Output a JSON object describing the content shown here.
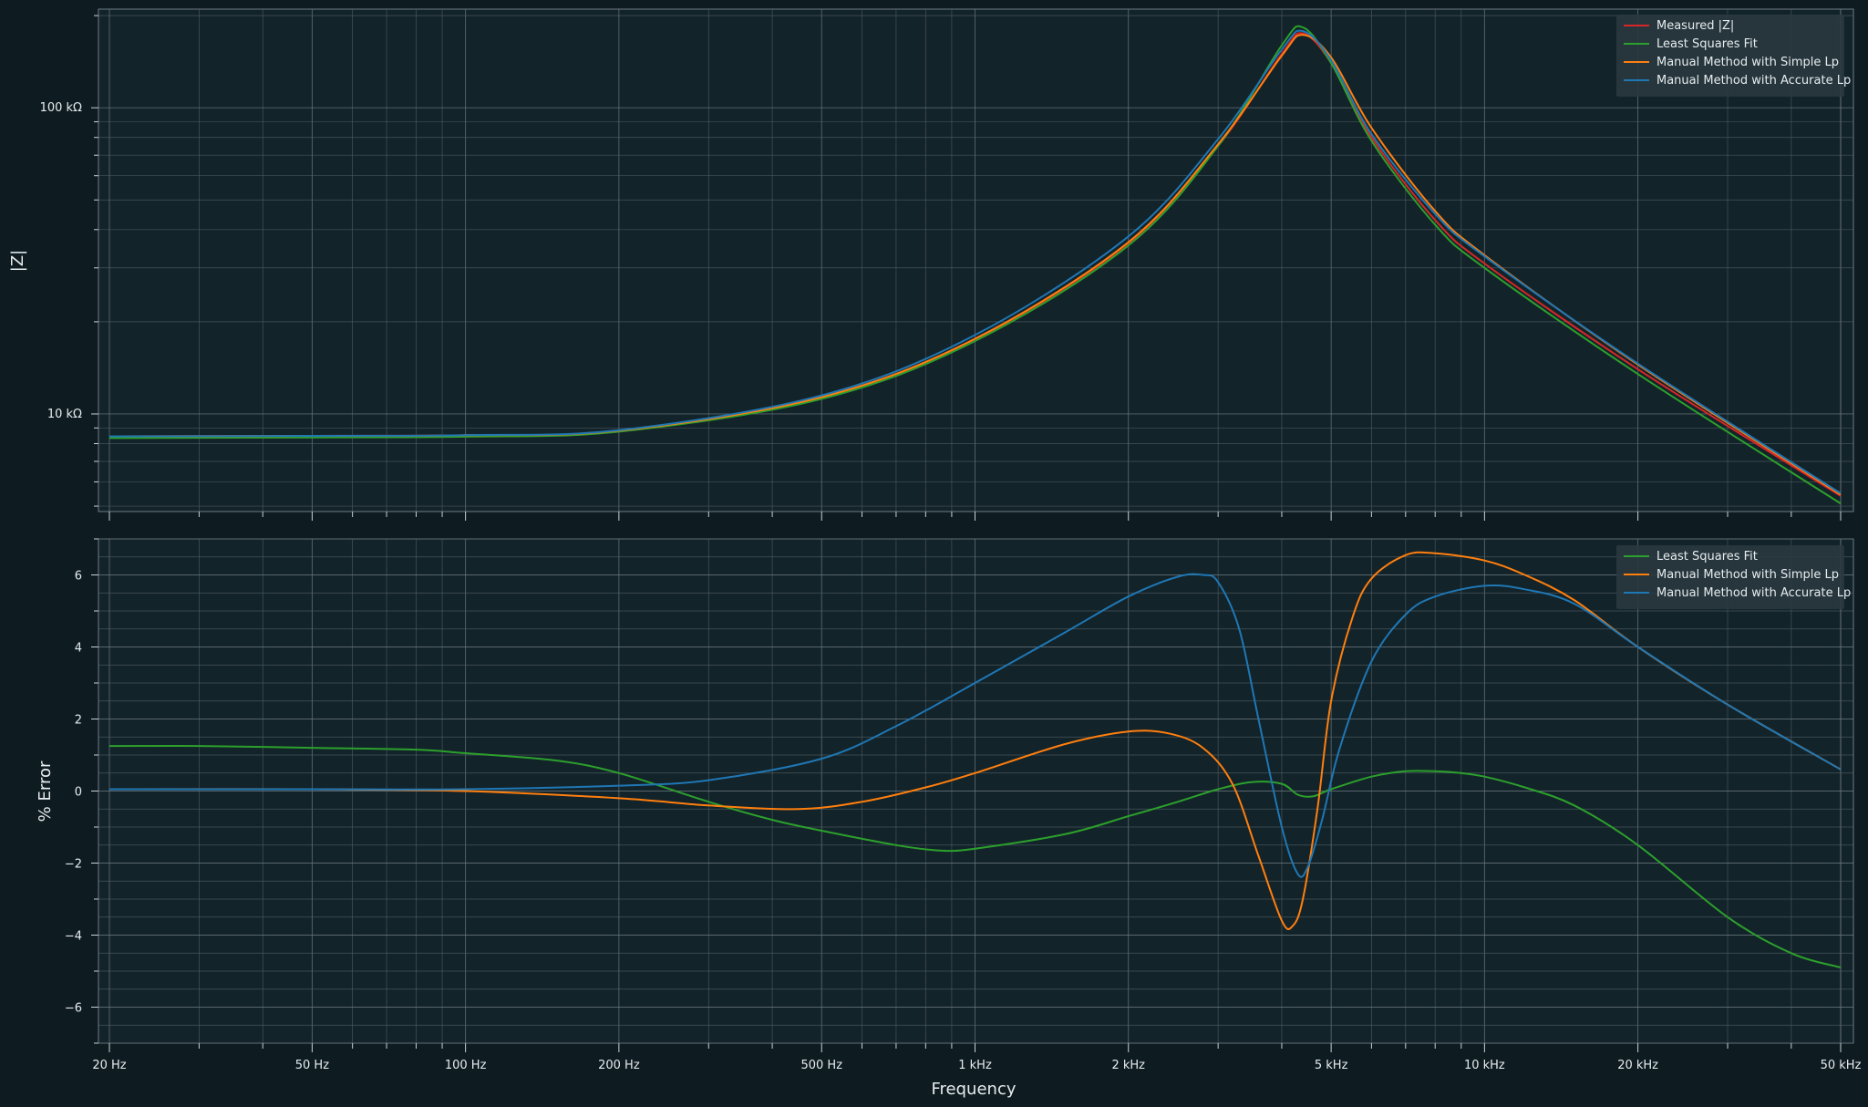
{
  "chart_data": [
    {
      "type": "line",
      "xlabel": "",
      "ylabel": "|Z|",
      "xscale": "log",
      "yscale": "log",
      "xlim": [
        20,
        50000
      ],
      "ylim": [
        4800,
        210000
      ],
      "grid": true,
      "legend_position": "top-right",
      "y_ticks": [
        {
          "value": 10000,
          "label": "10 kΩ"
        },
        {
          "value": 100000,
          "label": "100 kΩ"
        }
      ],
      "series": [
        {
          "name": "Measured |Z|",
          "color": "#d62728",
          "x": [
            20,
            50,
            100,
            200,
            500,
            1000,
            2000,
            3000,
            4000,
            4400,
            5000,
            6000,
            8000,
            10000,
            20000,
            50000
          ],
          "y": [
            8450,
            8480,
            8520,
            8800,
            11300,
            17500,
            36000,
            75000,
            150000,
            175000,
            140000,
            80000,
            43000,
            31000,
            14000,
            5400
          ]
        },
        {
          "name": "Least Squares Fit",
          "color": "#2ca02c",
          "x": [
            20,
            50,
            100,
            200,
            500,
            1000,
            2000,
            3000,
            4000,
            4400,
            5000,
            6000,
            8000,
            10000,
            20000,
            50000
          ],
          "y": [
            8340,
            8380,
            8430,
            8750,
            11200,
            17300,
            35500,
            75000,
            160000,
            183000,
            140000,
            78000,
            41500,
            30000,
            13500,
            5100
          ]
        },
        {
          "name": "Manual Method with Simple Lp",
          "color": "#ff7f0e",
          "x": [
            20,
            50,
            100,
            200,
            500,
            1000,
            2000,
            3000,
            4000,
            4400,
            5000,
            6000,
            8000,
            10000,
            20000,
            50000
          ],
          "y": [
            8450,
            8480,
            8520,
            8820,
            11350,
            17600,
            36400,
            76000,
            148000,
            173000,
            146000,
            86000,
            46000,
            33000,
            14500,
            5450
          ]
        },
        {
          "name": "Manual Method with Accurate Lp",
          "color": "#1f77b4",
          "x": [
            20,
            50,
            100,
            200,
            500,
            1000,
            2000,
            3000,
            4000,
            4400,
            5000,
            6000,
            8000,
            10000,
            20000,
            50000
          ],
          "y": [
            8450,
            8480,
            8530,
            8850,
            11500,
            18100,
            38000,
            79000,
            155000,
            178000,
            143000,
            82000,
            45000,
            32700,
            14600,
            5500
          ]
        }
      ]
    },
    {
      "type": "line",
      "xlabel": "Frequency",
      "ylabel": "% Error",
      "xscale": "log",
      "xlim": [
        20,
        50000
      ],
      "ylim": [
        -7,
        7
      ],
      "grid": true,
      "legend_position": "top-right",
      "x_ticks": [
        {
          "value": 20,
          "label": "20 Hz"
        },
        {
          "value": 50,
          "label": "50 Hz"
        },
        {
          "value": 100,
          "label": "100 Hz"
        },
        {
          "value": 200,
          "label": "200 Hz"
        },
        {
          "value": 500,
          "label": "500 Hz"
        },
        {
          "value": 1000,
          "label": "1 kHz"
        },
        {
          "value": 2000,
          "label": "2 kHz"
        },
        {
          "value": 5000,
          "label": "5 kHz"
        },
        {
          "value": 10000,
          "label": "10 kHz"
        },
        {
          "value": 20000,
          "label": "20 kHz"
        },
        {
          "value": 50000,
          "label": "50 kHz"
        }
      ],
      "y_ticks": [
        -6,
        -4,
        -2,
        0,
        2,
        4,
        6
      ],
      "series": [
        {
          "name": "Least Squares Fit",
          "color": "#2ca02c",
          "x": [
            20,
            30,
            50,
            80,
            100,
            150,
            200,
            300,
            400,
            500,
            700,
            850,
            1000,
            1500,
            2000,
            2500,
            3000,
            3500,
            4000,
            4300,
            4600,
            5000,
            6000,
            7000,
            8000,
            9000,
            10000,
            12000,
            15000,
            20000,
            30000,
            40000,
            50000
          ],
          "y": [
            1.25,
            1.25,
            1.2,
            1.15,
            1.05,
            0.85,
            0.5,
            -0.3,
            -0.8,
            -1.1,
            -1.5,
            -1.65,
            -1.6,
            -1.2,
            -0.7,
            -0.3,
            0.05,
            0.25,
            0.2,
            -0.1,
            -0.15,
            0.05,
            0.4,
            0.55,
            0.55,
            0.5,
            0.4,
            0.1,
            -0.4,
            -1.5,
            -3.5,
            -4.5,
            -4.9
          ]
        },
        {
          "name": "Manual Method with Simple Lp",
          "color": "#ff7f0e",
          "x": [
            20,
            50,
            100,
            200,
            300,
            450,
            600,
            800,
            1000,
            1500,
            2000,
            2400,
            2800,
            3200,
            3600,
            4000,
            4200,
            4400,
            4700,
            5000,
            5500,
            6000,
            7000,
            8000,
            10000,
            12000,
            15000,
            20000,
            30000,
            50000
          ],
          "y": [
            0.05,
            0.05,
            0.0,
            -0.2,
            -0.4,
            -0.5,
            -0.3,
            0.1,
            0.5,
            1.3,
            1.65,
            1.6,
            1.2,
            0.2,
            -1.8,
            -3.6,
            -3.75,
            -3.0,
            -0.5,
            2.5,
            4.8,
            5.9,
            6.55,
            6.6,
            6.4,
            6.0,
            5.3,
            4.0,
            2.4,
            0.6
          ]
        },
        {
          "name": "Manual Method with Accurate Lp",
          "color": "#1f77b4",
          "x": [
            20,
            50,
            100,
            200,
            300,
            500,
            700,
            1000,
            1500,
            2000,
            2500,
            2800,
            3000,
            3300,
            3600,
            4000,
            4300,
            4500,
            4800,
            5200,
            6000,
            7000,
            8000,
            10000,
            12000,
            15000,
            20000,
            30000,
            50000
          ],
          "y": [
            0.05,
            0.05,
            0.05,
            0.15,
            0.3,
            0.9,
            1.8,
            3.0,
            4.4,
            5.4,
            5.95,
            6.0,
            5.8,
            4.5,
            2.0,
            -1.0,
            -2.3,
            -2.1,
            -0.8,
            1.2,
            3.6,
            4.9,
            5.4,
            5.7,
            5.6,
            5.2,
            4.0,
            2.4,
            0.6
          ]
        }
      ]
    }
  ]
}
